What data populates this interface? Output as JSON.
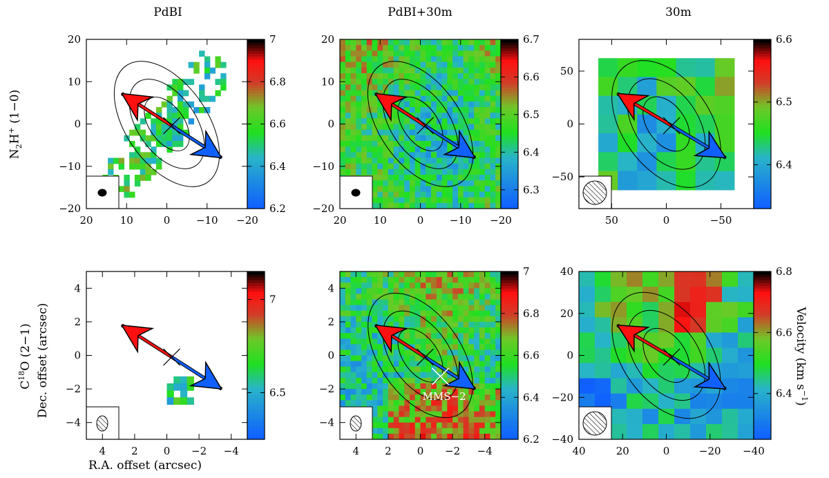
{
  "column_titles": [
    "PdBI",
    "PdBI+30m",
    "30m"
  ],
  "row_labels": {
    "top": {
      "main": "N",
      "sub1": "2",
      "mid": "H",
      "sup": "+",
      "tail": " (1−0)"
    },
    "bottom": {
      "main": "C",
      "sup": "18",
      "tail": "O (2−1)"
    }
  },
  "axis_labels": {
    "x": "R.A. offset (arcsec)",
    "y": "Dec. offset (arcsec)",
    "colorbar": "Velocity (km s",
    "colorbar_sup": "−1",
    "colorbar_end": ")"
  },
  "annotation": "MMS−2",
  "chart_data": [
    {
      "type": "heatmap",
      "row": 0,
      "col": 0,
      "xlim": [
        20,
        -20
      ],
      "ylim": [
        -20,
        20
      ],
      "xticks": [
        20,
        10,
        0,
        -10,
        -20
      ],
      "yticks": [
        -20,
        -10,
        0,
        10,
        20
      ],
      "cbar": [
        6.2,
        7.0
      ],
      "cticks": [
        6.2,
        6.4,
        6.6,
        6.8,
        7
      ],
      "cticklabels": [
        "6.2",
        "6.4",
        "6.6",
        "6.8",
        "7"
      ]
    },
    {
      "type": "heatmap",
      "row": 0,
      "col": 1,
      "xlim": [
        20,
        -20
      ],
      "ylim": [
        -20,
        20
      ],
      "xticks": [
        20,
        10,
        0,
        -10,
        -20
      ],
      "yticks": [
        -20,
        -10,
        0,
        10,
        20
      ],
      "cbar": [
        6.25,
        6.7
      ],
      "cticks": [
        6.3,
        6.4,
        6.5,
        6.6,
        6.7
      ],
      "cticklabels": [
        "6.3",
        "6.4",
        "6.5",
        "6.6",
        "6.7"
      ]
    },
    {
      "type": "heatmap",
      "row": 0,
      "col": 2,
      "xlim": [
        80,
        -80
      ],
      "ylim": [
        -80,
        80
      ],
      "xticks": [
        50,
        0,
        -50
      ],
      "yticks": [
        -50,
        0,
        50
      ],
      "cbar": [
        6.33,
        6.6
      ],
      "cticks": [
        6.4,
        6.5,
        6.6
      ],
      "cticklabels": [
        "6.4",
        "6.5",
        "6.6"
      ]
    },
    {
      "type": "heatmap",
      "row": 1,
      "col": 0,
      "xlim": [
        5,
        -5
      ],
      "ylim": [
        -5,
        5
      ],
      "xticks": [
        4,
        2,
        0,
        -2,
        -4
      ],
      "yticks": [
        -4,
        -2,
        0,
        2,
        4
      ],
      "cbar": [
        6.25,
        7.15
      ],
      "cticks": [
        6.5,
        7
      ],
      "cticklabels": [
        "6.5",
        "7"
      ]
    },
    {
      "type": "heatmap",
      "row": 1,
      "col": 1,
      "xlim": [
        5,
        -5
      ],
      "ylim": [
        -5,
        5
      ],
      "xticks": [
        4,
        2,
        0,
        -2,
        -4
      ],
      "yticks": [
        -4,
        -2,
        0,
        2,
        4
      ],
      "cbar": [
        6.2,
        7.0
      ],
      "cticks": [
        6.2,
        6.4,
        6.6,
        6.8,
        7
      ],
      "cticklabels": [
        "6.2",
        "6.4",
        "6.6",
        "6.8",
        "7"
      ]
    },
    {
      "type": "heatmap",
      "row": 1,
      "col": 2,
      "xlim": [
        40,
        -40
      ],
      "ylim": [
        -40,
        40
      ],
      "xticks": [
        40,
        20,
        0,
        -20,
        -40
      ],
      "yticks": [
        -40,
        -20,
        0,
        20,
        40
      ],
      "cbar": [
        6.25,
        6.8
      ],
      "cticks": [
        6.4,
        6.6,
        6.8
      ],
      "cticklabels": [
        "6.4",
        "6.6",
        "6.8"
      ]
    }
  ],
  "colors": {
    "blue": "#1060ff",
    "green": "#20e020",
    "red": "#ff1010",
    "black": "#000000"
  }
}
